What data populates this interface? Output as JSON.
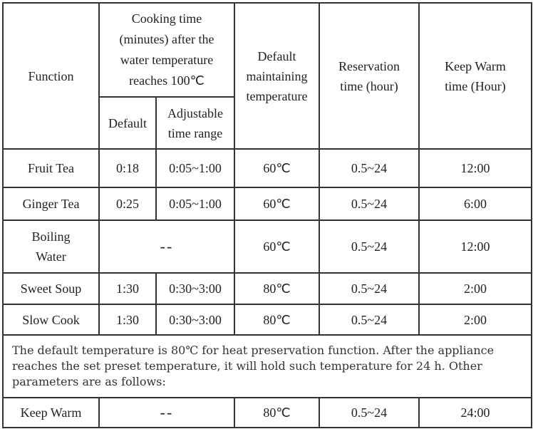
{
  "table": {
    "header": {
      "function": "Function",
      "cooking_time": "Cooking time (minutes) after the water temperature reaches 100℃",
      "default": "Default",
      "adjustable": "Adjustable time range",
      "default_temp": "Default maintaining temperature",
      "reservation": "Reservation time (hour)",
      "keep_warm": "Keep Warm time (Hour)"
    },
    "rows": [
      [
        "Fruit Tea",
        "0:18",
        "0:05~1:00",
        "60℃",
        "0.5~24",
        "12:00"
      ],
      [
        "Ginger Tea",
        "0:25",
        "0:05~1:00",
        "60℃",
        "0.5~24",
        "6:00"
      ],
      [
        "Boiling Water",
        "--",
        "60℃",
        "0.5~24",
        "12:00"
      ],
      [
        "Sweet Soup",
        "1:30",
        "0:30~3:00",
        "80℃",
        "0.5~24",
        "2:00"
      ],
      [
        "Slow Cook",
        "1:30",
        "0:30~3:00",
        "80℃",
        "0.5~24",
        "2:00"
      ]
    ],
    "note": "The default temperature is 80℃ for heat preservation function. After the appliance reaches the set preset temperature, it will hold such temperature for 24 h. Other parameters are as follows:",
    "keep_warm_row": [
      "Keep Warm",
      "--",
      "80℃",
      "0.5~24",
      "24:00"
    ]
  }
}
